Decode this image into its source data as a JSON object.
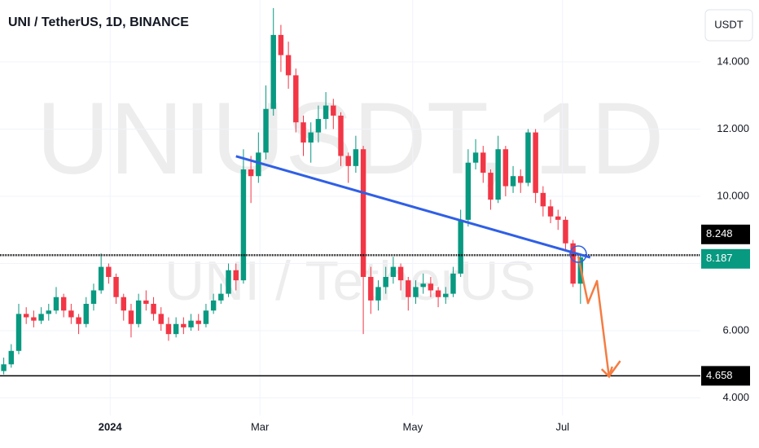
{
  "chart_data": {
    "type": "candlestick",
    "title": "UNI / TetherUS, 1D, BINANCE",
    "watermark": [
      "UNIUSDT, 1D",
      "UNI / TetherUS"
    ],
    "currency": "USDT",
    "up_color": "#089981",
    "down_color": "#f23645",
    "open": [
      4.8,
      5.0,
      5.4,
      6.5,
      6.4,
      6.3,
      6.5,
      6.6,
      7.0,
      6.6,
      6.4,
      6.2,
      6.8,
      7.2,
      7.9,
      7.6,
      7.0,
      6.6,
      6.2,
      6.9,
      6.8,
      6.5,
      6.2,
      5.9,
      6.2,
      6.1,
      6.3,
      6.2,
      6.6,
      6.9,
      7.1,
      7.8,
      7.5,
      10.8,
      10.6,
      11.3,
      12.6,
      14.8,
      14.2,
      13.6,
      12.2,
      11.6,
      11.9,
      12.3,
      12.7,
      12.4,
      11.2,
      10.9,
      11.4,
      7.6,
      6.9,
      7.3,
      7.6,
      7.9,
      7.5,
      7.0,
      7.3,
      7.4,
      7.2,
      7.0,
      7.1,
      7.7,
      9.3,
      11.0,
      11.3,
      10.7,
      9.9,
      11.4,
      10.3,
      10.6,
      10.4,
      11.9,
      10.1,
      9.7,
      9.4,
      9.3,
      8.6,
      7.4
    ],
    "high": [
      5.2,
      5.6,
      6.8,
      6.7,
      6.6,
      6.7,
      6.8,
      7.3,
      7.1,
      6.8,
      6.5,
      7.0,
      7.4,
      8.3,
      8.0,
      7.7,
      7.1,
      6.8,
      7.1,
      7.2,
      7.0,
      6.7,
      6.4,
      6.4,
      6.4,
      6.5,
      6.5,
      6.8,
      7.1,
      7.4,
      8.0,
      8.0,
      11.4,
      11.2,
      11.9,
      13.3,
      15.6,
      15.1,
      14.6,
      13.8,
      12.4,
      12.2,
      12.7,
      13.1,
      12.9,
      12.5,
      11.3,
      11.8,
      11.5,
      7.9,
      7.5,
      7.9,
      8.2,
      8.0,
      7.6,
      7.5,
      7.7,
      7.6,
      7.3,
      7.3,
      7.9,
      9.6,
      11.4,
      11.7,
      11.5,
      10.8,
      11.8,
      11.5,
      10.9,
      10.8,
      12.0,
      12.0,
      10.3,
      9.9,
      9.6,
      9.4,
      8.7,
      8.3
    ],
    "low": [
      4.7,
      4.9,
      5.3,
      6.2,
      6.1,
      6.2,
      6.3,
      6.5,
      6.4,
      6.2,
      5.9,
      6.1,
      6.6,
      7.1,
      7.4,
      6.8,
      6.3,
      5.8,
      6.1,
      6.6,
      6.3,
      6.0,
      5.7,
      5.8,
      5.9,
      6.0,
      6.0,
      6.1,
      6.5,
      6.8,
      7.0,
      7.2,
      7.4,
      9.8,
      10.4,
      11.1,
      12.4,
      13.7,
      13.2,
      11.9,
      11.2,
      11.0,
      11.6,
      12.0,
      12.0,
      10.9,
      10.4,
      10.7,
      5.9,
      6.5,
      6.6,
      7.1,
      7.4,
      7.2,
      6.6,
      6.8,
      7.1,
      7.0,
      6.7,
      6.8,
      7.0,
      7.6,
      9.1,
      10.8,
      10.4,
      9.6,
      9.8,
      10.0,
      10.1,
      10.1,
      10.3,
      9.8,
      9.4,
      9.2,
      9.0,
      8.4,
      7.3,
      6.8
    ],
    "close": [
      5.0,
      5.4,
      6.5,
      6.4,
      6.3,
      6.5,
      6.6,
      7.0,
      6.6,
      6.4,
      6.2,
      6.8,
      7.2,
      7.9,
      7.6,
      7.0,
      6.6,
      6.2,
      6.9,
      6.8,
      6.5,
      6.2,
      5.9,
      6.2,
      6.1,
      6.3,
      6.2,
      6.6,
      6.9,
      7.1,
      7.8,
      7.5,
      10.8,
      10.6,
      11.3,
      12.6,
      14.8,
      14.2,
      13.6,
      12.2,
      11.6,
      11.9,
      12.3,
      12.7,
      12.4,
      11.2,
      10.9,
      11.4,
      7.6,
      6.9,
      7.3,
      7.6,
      7.9,
      7.5,
      7.0,
      7.3,
      7.4,
      7.2,
      7.0,
      7.1,
      7.7,
      9.3,
      11.0,
      11.3,
      10.7,
      9.9,
      11.4,
      10.3,
      10.6,
      10.4,
      11.9,
      10.1,
      9.7,
      9.4,
      9.3,
      8.6,
      7.4,
      8.187
    ],
    "last": 8.187,
    "xlim": [
      -0.5,
      93
    ],
    "ylim": [
      3.48,
      15.84
    ],
    "xticks": [
      {
        "value": 14.2,
        "label": "2024"
      },
      {
        "value": 34.2,
        "label": "Mar"
      },
      {
        "value": 54.6,
        "label": "May"
      },
      {
        "value": 74.6,
        "label": "Jul"
      }
    ],
    "yticks": [
      {
        "value": 4,
        "label": "4.000"
      },
      {
        "value": 6,
        "label": "6.000"
      },
      {
        "value": 8,
        "label": "8.000"
      },
      {
        "value": 10,
        "label": "10.000"
      },
      {
        "value": 12,
        "label": "12.000"
      },
      {
        "value": 14,
        "label": "14.000"
      }
    ],
    "levels": [
      8.248,
      4.658
    ],
    "trendline": {
      "x": [
        31,
        78.3
      ],
      "y": [
        11.19,
        8.18
      ],
      "color": "#2f5fe6"
    },
    "projection": {
      "x": [
        76.7,
        78.0,
        79.2,
        80.8,
        82.3
      ],
      "y": [
        8.21,
        6.82,
        7.48,
        4.64,
        5.1
      ],
      "color": "#f57c42"
    },
    "grid": true
  }
}
